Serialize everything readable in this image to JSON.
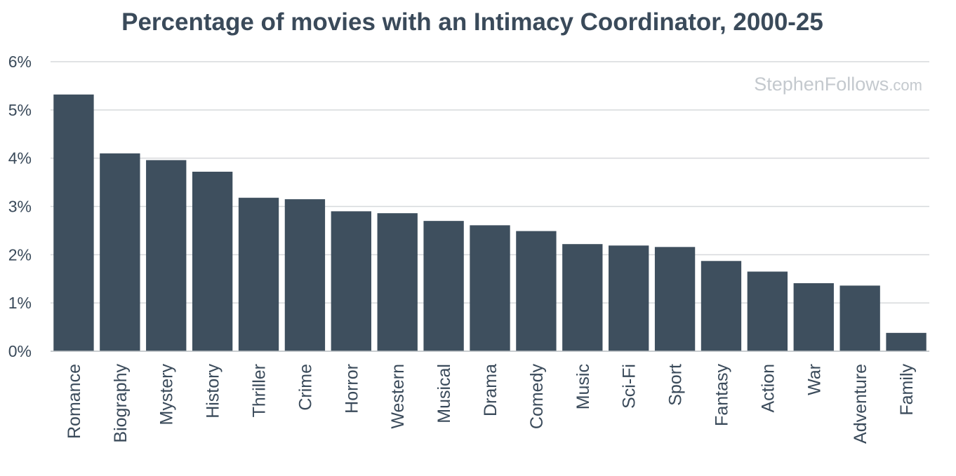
{
  "chart_data": {
    "type": "bar",
    "title": "Percentage of movies with an Intimacy Coordinator, 2000-25",
    "xlabel": "",
    "ylabel": "",
    "ylim": [
      0,
      6
    ],
    "yticks": [
      "0%",
      "1%",
      "2%",
      "3%",
      "4%",
      "5%",
      "6%"
    ],
    "grid": true,
    "legend": "none",
    "categories": [
      "Romance",
      "Biography",
      "Mystery",
      "History",
      "Thriller",
      "Crime",
      "Horror",
      "Western",
      "Musical",
      "Drama",
      "Comedy",
      "Music",
      "Sci-Fi",
      "Sport",
      "Fantasy",
      "Action",
      "War",
      "Adventure",
      "Family"
    ],
    "values": [
      5.32,
      4.1,
      3.96,
      3.72,
      3.18,
      3.15,
      2.9,
      2.86,
      2.7,
      2.61,
      2.49,
      2.22,
      2.19,
      2.16,
      1.87,
      1.65,
      1.41,
      1.36,
      0.38
    ],
    "bar_color": "#3e4f5e",
    "watermark": {
      "main": "StephenFollows",
      "suffix": ".com"
    }
  }
}
